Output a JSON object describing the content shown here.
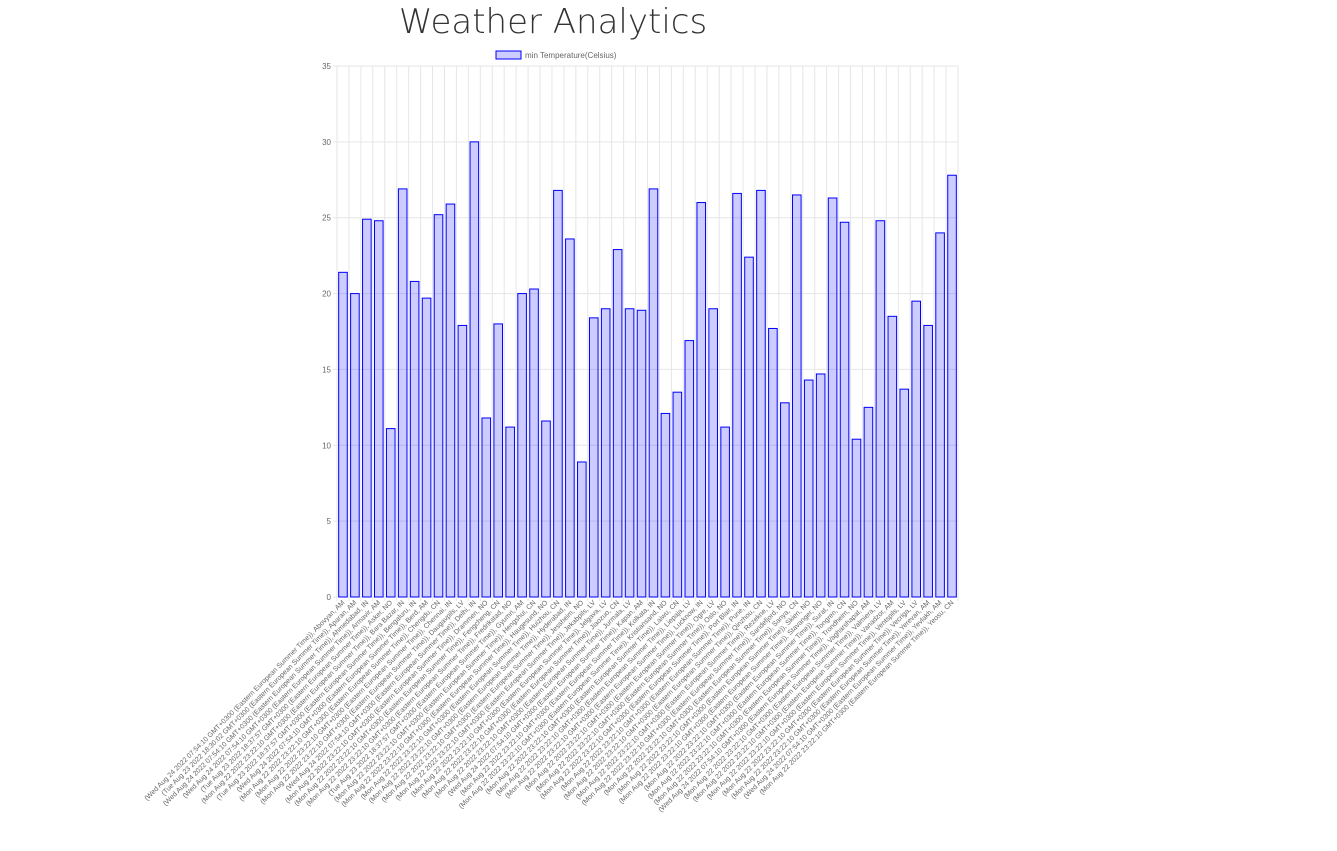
{
  "page": {
    "title": "Weather Analytics"
  },
  "chart_data": {
    "type": "bar",
    "ylim": [
      0,
      35
    ],
    "yticks": [
      0,
      5,
      10,
      15,
      20,
      25,
      30,
      35
    ],
    "grid": true,
    "legend_position": "top",
    "colors": {
      "bar_fill": "rgba(0,0,255,0.2)",
      "bar_border": "#0000ff",
      "grid": "#e6e6e6"
    },
    "series": [
      {
        "name": "min Temperature(Celsius)",
        "values": [
          21.4,
          20.0,
          24.9,
          24.8,
          11.1,
          26.9,
          20.8,
          19.7,
          25.2,
          25.9,
          17.9,
          30.0,
          11.8,
          18.0,
          11.2,
          20.0,
          20.3,
          11.6,
          26.8,
          23.6,
          8.9,
          18.4,
          19.0,
          22.9,
          19.0,
          18.9,
          26.9,
          12.1,
          13.5,
          16.9,
          26.0,
          19.0,
          11.2,
          26.6,
          22.4,
          26.8,
          17.7,
          12.8,
          26.5,
          14.3,
          14.7,
          26.3,
          24.7,
          10.4,
          12.5,
          24.8,
          18.5,
          13.7,
          19.5,
          17.9,
          24.0,
          27.8
        ]
      }
    ],
    "categories": [
      "(Wed Aug 24 2022 07:54:10 GMT+0300 (Eastern European Summer Time)), Abovyan, AM",
      "(Tue Aug 23 2022 18:30:02 GMT+0300 (Eastern European Summer Time)), Aparan, AM",
      "(Wed Aug 24 2022 07:54:10 GMT+0300 (Eastern European Summer Time)), Ahmedabad, IN",
      "(Wed Aug 24 2022 07:54:10 GMT+0300 (Eastern European Summer Time)), Armavir, AM",
      "(Tue Aug 23 2022 18:37:57 GMT+0300 (Eastern European Summer Time)), Asker, NO",
      "(Mon Aug 22 2022 23:22:10 GMT+0300 (Eastern European Summer Time)), Bara Bazar, IN",
      "(Tue Aug 23 2022 18:37:57 GMT+0300 (Eastern European Summer Time)), Bengaluru, IN",
      "(Wed Aug 24 2022 07:54:10 GMT+0300 (Eastern European Summer Time)), Berd, AM",
      "(Mon Aug 22 2022 23:22:10 GMT+0300 (Eastern European Summer Time)), Chengdu, CN",
      "(Mon Aug 22 2022 23:22:10 GMT+0300 (Eastern European Summer Time)), Chennai, IN",
      "(Mon Aug 22 2022 23:22:10 GMT+0300 (Eastern European Summer Time)), Daugavpils, LV",
      "(Wed Aug 24 2022 07:54:10 GMT+0300 (Eastern European Summer Time)), Delhi, IN",
      "(Mon Aug 22 2022 23:22:10 GMT+0300 (Eastern European Summer Time)), Drammen, NO",
      "(Mon Aug 22 2022 23:22:10 GMT+0300 (Eastern European Summer Time)), Fengcheng, CN",
      "(Mon Aug 22 2022 23:22:10 GMT+0300 (Eastern European Summer Time)), Fredrikstad, NO",
      "(Tue Aug 23 2022 18:37:57 GMT+0300 (Eastern European Summer Time)), Gyumri, AM",
      "(Mon Aug 22 2022 23:22:10 GMT+0300 (Eastern European Summer Time)), Hengshui, CN",
      "(Mon Aug 22 2022 23:22:10 GMT+0300 (Eastern European Summer Time)), Haugesund, NO",
      "(Mon Aug 22 2022 23:22:10 GMT+0300 (Eastern European Summer Time)), Huizhou, CN",
      "(Mon Aug 22 2022 23:22:10 GMT+0300 (Eastern European Summer Time)), Hyderabad, IN",
      "(Mon Aug 22 2022 23:22:10 GMT+0300 (Eastern European Summer Time)), Jessheim, NO",
      "(Mon Aug 22 2022 23:22:10 GMT+0300 (Eastern European Summer Time)), Jekabpils, LV",
      "(Mon Aug 22 2022 23:22:10 GMT+0300 (Eastern European Summer Time)), Jelgava, LV",
      "(Mon Aug 22 2022 23:22:10 GMT+0300 (Eastern European Summer Time)), Jiaozuo, CN",
      "(Mon Aug 22 2022 23:22:10 GMT+0300 (Eastern European Summer Time)), Jurmala, LV",
      "(Wed Aug 24 2022 07:54:10 GMT+0300 (Eastern European Summer Time)), Kapan, AM",
      "(Mon Aug 22 2022 23:22:10 GMT+0300 (Eastern European Summer Time)), Kolkata, IN",
      "(Mon Aug 22 2022 23:22:10 GMT+0300 (Eastern European Summer Time)), Kristiansand, NO",
      "(Mon Aug 22 2022 23:22:10 GMT+0300 (Eastern European Summer Time)), Laiwu, CN",
      "(Mon Aug 22 2022 23:22:10 GMT+0300 (Eastern European Summer Time)), Liepaja, LV",
      "(Mon Aug 22 2022 23:22:10 GMT+0300 (Eastern European Summer Time)), Lucknow, IN",
      "(Mon Aug 22 2022 23:22:10 GMT+0300 (Eastern European Summer Time)), Ogre, LV",
      "(Mon Aug 22 2022 23:22:10 GMT+0300 (Eastern European Summer Time)), Oslo, NO",
      "(Mon Aug 22 2022 23:22:10 GMT+0300 (Eastern European Summer Time)), Port Blair, IN",
      "(Mon Aug 22 2022 23:22:10 GMT+0300 (Eastern European Summer Time)), Pune, IN",
      "(Mon Aug 22 2022 23:22:10 GMT+0300 (Eastern European Summer Time)), Qinzhou, CN",
      "(Mon Aug 22 2022 23:22:10 GMT+0300 (Eastern European Summer Time)), Rezekne, LV",
      "(Mon Aug 22 2022 23:22:10 GMT+0300 (Eastern European Summer Time)), Sandefjord, NO",
      "(Mon Aug 22 2022 23:22:10 GMT+0300 (Eastern European Summer Time)), Sanya, CN",
      "(Mon Aug 22 2022 23:22:10 GMT+0300 (Eastern European Summer Time)), Skien, NO",
      "(Mon Aug 22 2022 23:22:10 GMT+0300 (Eastern European Summer Time)), Stavanger, NO",
      "(Mon Aug 22 2022 23:22:10 GMT+0300 (Eastern European Summer Time)), Surat, IN",
      "(Mon Aug 22 2022 23:22:10 GMT+0300 (Eastern European Summer Time)), Tongren, CN",
      "(Mon Aug 22 2022 23:22:10 GMT+0300 (Eastern European Summer Time)), Trondheim, NO",
      "(Wed Aug 24 2022 07:54:10 GMT+0300 (Eastern European Summer Time)), Vagharshapat, AM",
      "(Mon Aug 22 2022 23:22:10 GMT+0300 (Eastern European Summer Time)), Valmiera, LV",
      "(Mon Aug 22 2022 23:22:10 GMT+0300 (Eastern European Summer Time)), Vanadzor, AM",
      "(Mon Aug 22 2022 23:22:10 GMT+0300 (Eastern European Summer Time)), Ventspils, LV",
      "(Mon Aug 22 2022 23:22:10 GMT+0300 (Eastern European Summer Time)), Vecriga, LV",
      "(Mon Aug 22 2022 23:22:10 GMT+0300 (Eastern European Summer Time)), Yerevan, AM",
      "(Wed Aug 24 2022 07:54:10 GMT+0300 (Eastern European Summer Time)), Yevlakh, AM",
      "(Mon Aug 22 2022 23:22:10 GMT+0300 (Eastern European Summer Time)), Yeosu, CN"
    ]
  }
}
